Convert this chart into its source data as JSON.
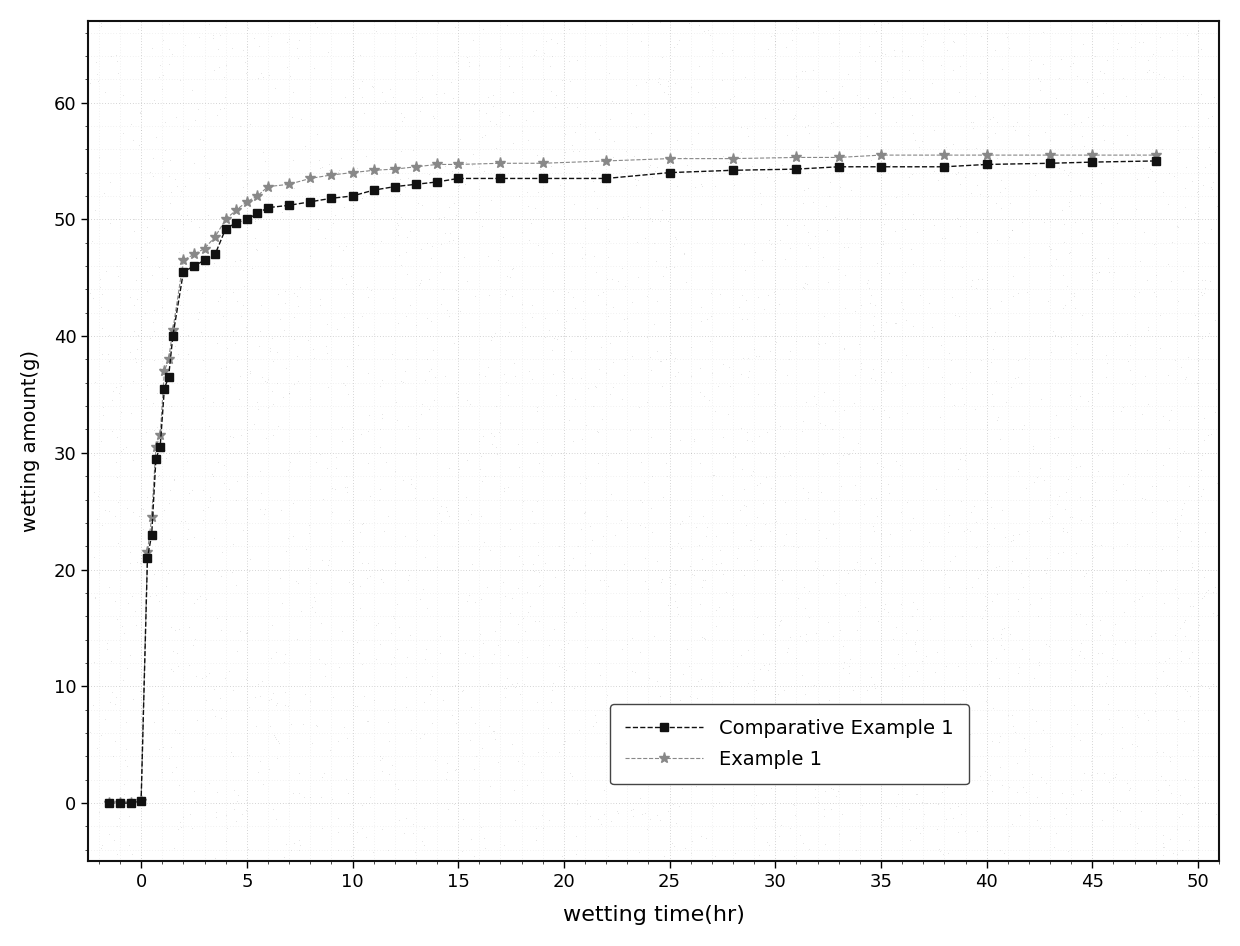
{
  "title": "",
  "xlabel": "wetting time(hr)",
  "ylabel": "wetting amount(g)",
  "xlim": [
    -2.5,
    51
  ],
  "ylim": [
    -5,
    67
  ],
  "xticks": [
    0,
    5,
    10,
    15,
    20,
    25,
    30,
    35,
    40,
    45,
    50
  ],
  "yticks": [
    0,
    10,
    20,
    30,
    40,
    50,
    60
  ],
  "comp_example_1_x": [
    -1.5,
    -1.0,
    -0.5,
    0.0,
    0.3,
    0.5,
    0.7,
    0.9,
    1.1,
    1.3,
    1.5,
    2.0,
    2.5,
    3.0,
    3.5,
    4.0,
    4.5,
    5.0,
    5.5,
    6.0,
    7.0,
    8.0,
    9.0,
    10.0,
    11.0,
    12.0,
    13.0,
    14.0,
    15.0,
    17.0,
    19.0,
    22.0,
    25.0,
    28.0,
    31.0,
    33.0,
    35.0,
    38.0,
    40.0,
    43.0,
    45.0,
    48.0
  ],
  "comp_example_1_y": [
    0.0,
    0.0,
    0.0,
    0.2,
    21.0,
    23.0,
    29.5,
    30.5,
    35.5,
    36.5,
    40.0,
    45.5,
    46.0,
    46.5,
    47.0,
    49.2,
    49.7,
    50.0,
    50.5,
    51.0,
    51.2,
    51.5,
    51.8,
    52.0,
    52.5,
    52.8,
    53.0,
    53.2,
    53.5,
    53.5,
    53.5,
    53.5,
    54.0,
    54.2,
    54.3,
    54.5,
    54.5,
    54.5,
    54.7,
    54.8,
    54.9,
    55.0
  ],
  "example_1_x": [
    -1.5,
    -1.0,
    -0.5,
    0.0,
    0.3,
    0.5,
    0.7,
    0.9,
    1.1,
    1.3,
    1.5,
    2.0,
    2.5,
    3.0,
    3.5,
    4.0,
    4.5,
    5.0,
    5.5,
    6.0,
    7.0,
    8.0,
    9.0,
    10.0,
    11.0,
    12.0,
    13.0,
    14.0,
    15.0,
    17.0,
    19.0,
    22.0,
    25.0,
    28.0,
    31.0,
    33.0,
    35.0,
    38.0,
    40.0,
    43.0,
    45.0,
    48.0
  ],
  "example_1_y": [
    0.0,
    0.0,
    0.0,
    0.2,
    21.5,
    24.5,
    30.5,
    31.5,
    37.0,
    38.0,
    40.5,
    46.5,
    47.0,
    47.5,
    48.5,
    50.0,
    50.8,
    51.5,
    52.0,
    52.8,
    53.0,
    53.5,
    53.8,
    54.0,
    54.2,
    54.3,
    54.5,
    54.7,
    54.7,
    54.8,
    54.8,
    55.0,
    55.2,
    55.2,
    55.3,
    55.3,
    55.5,
    55.5,
    55.5,
    55.5,
    55.5,
    55.5
  ],
  "legend_label_comp": "Comparative Example 1",
  "legend_label_ex": "Example 1",
  "background_color": "#ffffff",
  "grid_major_color": "#999999",
  "grid_minor_color": "#bbbbbb",
  "comp_color": "#111111",
  "example_color": "#888888"
}
